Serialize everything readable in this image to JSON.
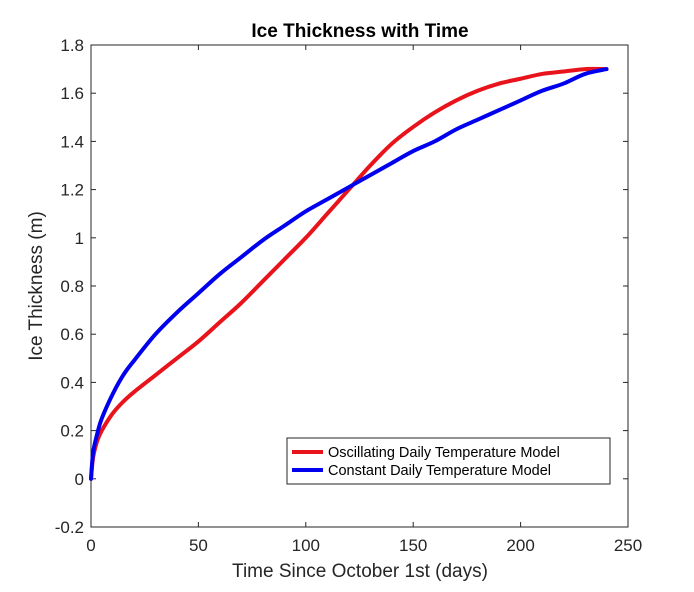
{
  "chart_data": {
    "type": "line",
    "title": "Ice Thickness with Time",
    "xlabel": "Time Since October 1st (days)",
    "ylabel": "Ice Thickness (m)",
    "xlim": [
      0,
      250
    ],
    "ylim": [
      -0.2,
      1.8
    ],
    "xticks": [
      0,
      50,
      100,
      150,
      200,
      250
    ],
    "yticks": [
      -0.2,
      0,
      0.2,
      0.4,
      0.6,
      0.8,
      1,
      1.2,
      1.4,
      1.6,
      1.8
    ],
    "xtick_labels": [
      "0",
      "50",
      "100",
      "150",
      "200",
      "250"
    ],
    "ytick_labels": [
      "-0.2",
      "0",
      "0.2",
      "0.4",
      "0.6",
      "0.8",
      "1",
      "1.2",
      "1.4",
      "1.6",
      "1.8"
    ],
    "grid": false,
    "legend_position": "bottom-right",
    "series": [
      {
        "name": "Oscillating Daily Temperature Model",
        "color": "#e8131b",
        "x": [
          0,
          1,
          3,
          5,
          10,
          15,
          20,
          30,
          40,
          50,
          60,
          70,
          80,
          90,
          100,
          110,
          120,
          130,
          140,
          150,
          160,
          170,
          180,
          190,
          200,
          210,
          220,
          230,
          240
        ],
        "y": [
          0,
          0.09,
          0.16,
          0.2,
          0.27,
          0.32,
          0.36,
          0.43,
          0.5,
          0.57,
          0.65,
          0.73,
          0.82,
          0.91,
          1.0,
          1.1,
          1.2,
          1.3,
          1.39,
          1.46,
          1.52,
          1.57,
          1.61,
          1.64,
          1.66,
          1.68,
          1.69,
          1.7,
          1.7
        ]
      },
      {
        "name": "Constant Daily Temperature Model",
        "color": "#0000ee",
        "x": [
          0,
          1,
          3,
          5,
          10,
          15,
          20,
          30,
          40,
          50,
          60,
          70,
          80,
          90,
          100,
          110,
          120,
          130,
          140,
          150,
          160,
          170,
          180,
          190,
          200,
          210,
          220,
          230,
          240
        ],
        "y": [
          0,
          0.11,
          0.19,
          0.25,
          0.35,
          0.43,
          0.49,
          0.6,
          0.69,
          0.77,
          0.85,
          0.92,
          0.99,
          1.05,
          1.11,
          1.16,
          1.21,
          1.26,
          1.31,
          1.36,
          1.4,
          1.45,
          1.49,
          1.53,
          1.57,
          1.61,
          1.64,
          1.68,
          1.7
        ]
      }
    ]
  }
}
